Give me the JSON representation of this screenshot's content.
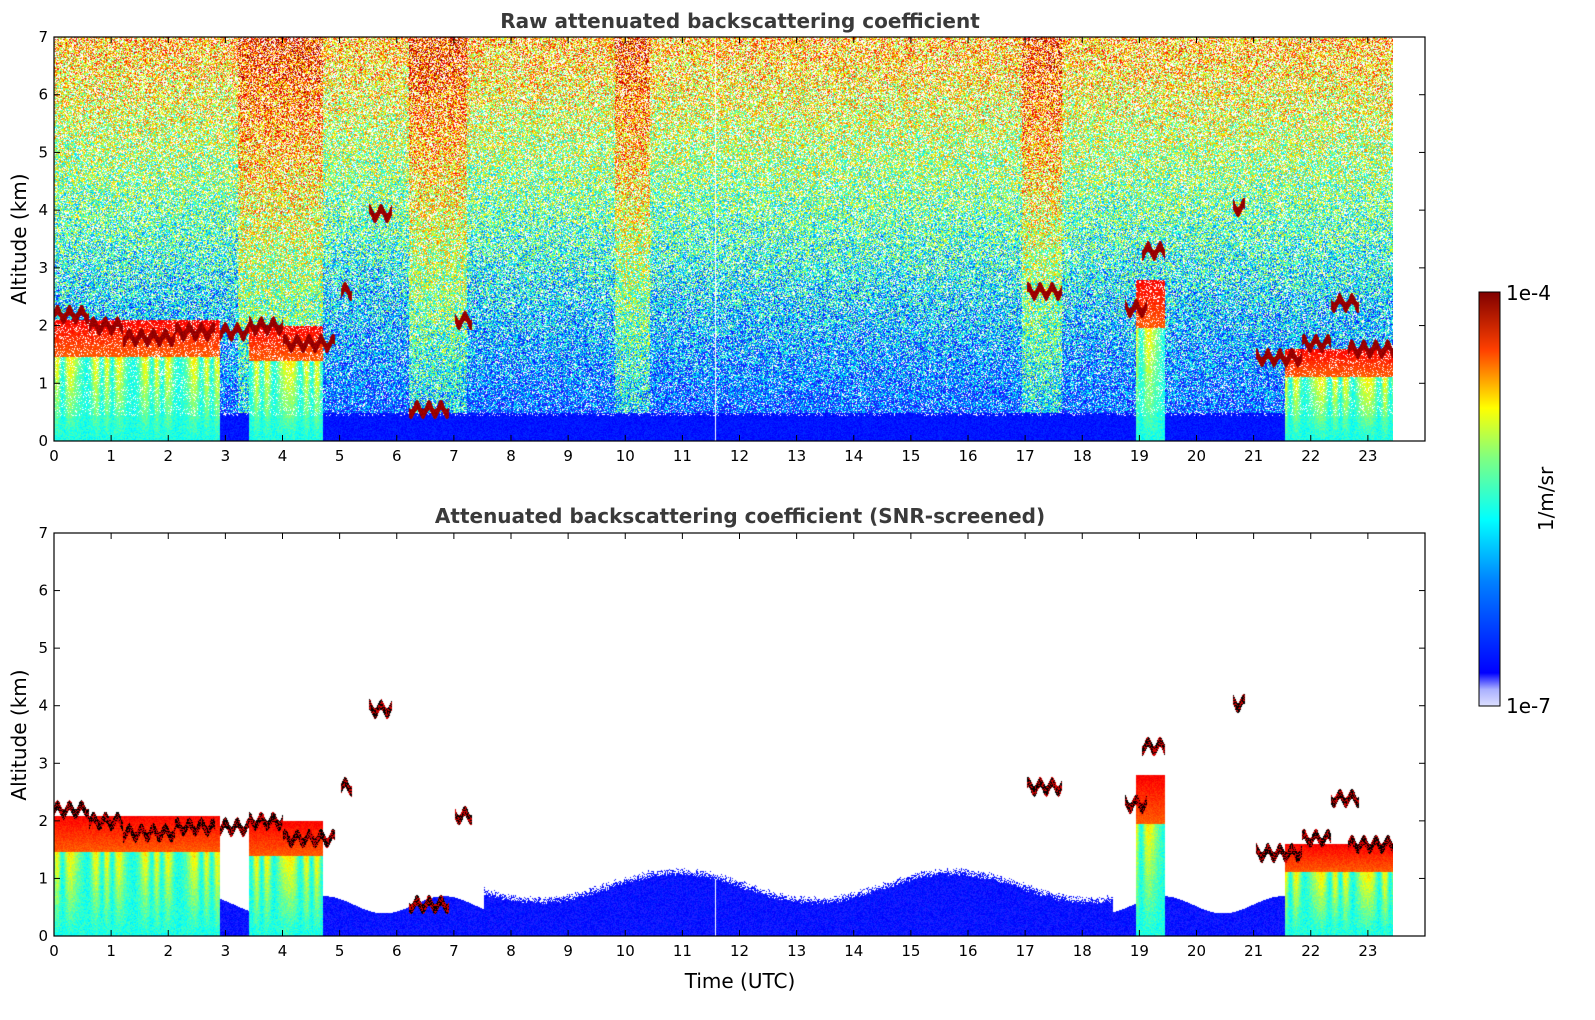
{
  "chart_data": [
    {
      "type": "heatmap",
      "title": "Raw attenuated backscattering coefficient",
      "xlabel": "",
      "ylabel": "Altitude (km)",
      "xlim": [
        0,
        24
      ],
      "ylim": [
        0,
        7
      ],
      "x_data_end": 23.4,
      "x_ticks": [
        "0",
        "1",
        "2",
        "3",
        "4",
        "5",
        "6",
        "7",
        "8",
        "9",
        "10",
        "11",
        "12",
        "13",
        "14",
        "15",
        "16",
        "17",
        "18",
        "19",
        "20",
        "21",
        "22",
        "23"
      ],
      "y_ticks": [
        "0",
        "1",
        "2",
        "3",
        "4",
        "5",
        "6",
        "7"
      ],
      "screened": false
    },
    {
      "type": "heatmap",
      "title": "Attenuated backscattering coefficient (SNR-screened)",
      "xlabel": "Time (UTC)",
      "ylabel": "Altitude (km)",
      "xlim": [
        0,
        24
      ],
      "ylim": [
        0,
        7
      ],
      "x_data_end": 23.4,
      "x_ticks": [
        "0",
        "1",
        "2",
        "3",
        "4",
        "5",
        "6",
        "7",
        "8",
        "9",
        "10",
        "11",
        "12",
        "13",
        "14",
        "15",
        "16",
        "17",
        "18",
        "19",
        "20",
        "21",
        "22",
        "23"
      ],
      "y_ticks": [
        "0",
        "1",
        "2",
        "3",
        "4",
        "5",
        "6",
        "7"
      ],
      "screened": true
    }
  ],
  "colorbar": {
    "label": "1/m/sr",
    "max_label": "1e-4",
    "min_label": "1e-7",
    "scale": "log",
    "colormap": "jet",
    "range": [
      1e-07,
      0.0001
    ]
  },
  "features": {
    "cloud_layers": [
      {
        "t0": 0.0,
        "t1": 0.6,
        "alt": 2.2
      },
      {
        "t0": 0.6,
        "t1": 1.2,
        "alt": 2.0
      },
      {
        "t0": 1.2,
        "t1": 2.1,
        "alt": 1.8
      },
      {
        "t0": 2.1,
        "t1": 2.8,
        "alt": 1.9
      },
      {
        "t0": 2.9,
        "t1": 3.4,
        "alt": 1.9
      },
      {
        "t0": 3.4,
        "t1": 4.0,
        "alt": 2.0
      },
      {
        "t0": 4.0,
        "t1": 4.9,
        "alt": 1.7
      },
      {
        "t0": 5.0,
        "t1": 5.2,
        "alt": 2.6
      },
      {
        "t0": 5.5,
        "t1": 5.9,
        "alt": 3.95
      },
      {
        "t0": 6.2,
        "t1": 6.9,
        "alt": 0.55
      },
      {
        "t0": 7.0,
        "t1": 7.3,
        "alt": 2.1
      },
      {
        "t0": 17.0,
        "t1": 17.6,
        "alt": 2.6
      },
      {
        "t0": 18.7,
        "t1": 19.1,
        "alt": 2.3
      },
      {
        "t0": 19.0,
        "t1": 19.4,
        "alt": 3.3
      },
      {
        "t0": 20.6,
        "t1": 20.8,
        "alt": 4.05
      },
      {
        "t0": 21.0,
        "t1": 21.8,
        "alt": 1.45
      },
      {
        "t0": 21.8,
        "t1": 22.3,
        "alt": 1.7
      },
      {
        "t0": 22.3,
        "t1": 22.8,
        "alt": 2.4
      },
      {
        "t0": 22.6,
        "t1": 23.4,
        "alt": 1.6
      }
    ],
    "aerosol_columns": [
      {
        "t0": 0.0,
        "t1": 2.9,
        "top": 2.1
      },
      {
        "t0": 3.4,
        "t1": 4.7,
        "top": 2.0
      },
      {
        "t0": 18.9,
        "t1": 19.4,
        "top": 2.8
      },
      {
        "t0": 21.5,
        "t1": 23.4,
        "top": 1.6
      }
    ]
  }
}
